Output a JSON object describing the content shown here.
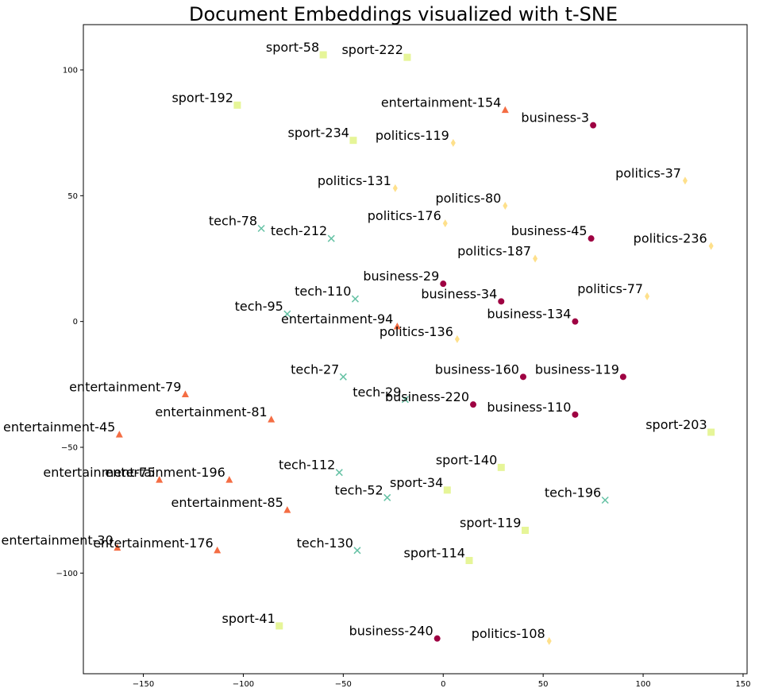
{
  "chart_data": {
    "type": "scatter",
    "title": "Document Embeddings visualized with t-SNE",
    "xlabel": "",
    "ylabel": "",
    "xlim": [
      -180,
      152
    ],
    "ylim": [
      -140,
      118
    ],
    "xticks": [
      -150,
      -100,
      -50,
      0,
      50,
      100,
      150
    ],
    "yticks": [
      -100,
      -50,
      0,
      50,
      100
    ],
    "tick_labels_x": [
      "−150",
      "−100",
      "−50",
      "0",
      "50",
      "100",
      "150"
    ],
    "tick_labels_y": [
      "−100",
      "−50",
      "0",
      "50",
      "100"
    ],
    "grid": false,
    "legend": "none",
    "categories": {
      "business": {
        "color": "#9e0142",
        "marker": "circle-icon"
      },
      "entertainment": {
        "color": "#f46d43",
        "marker": "triangle-icon"
      },
      "politics": {
        "color": "#fee08b",
        "marker": "diamond-icon"
      },
      "sport": {
        "color": "#e6f598",
        "marker": "square-icon"
      },
      "tech": {
        "color": "#66c2a5",
        "marker": "x-icon"
      }
    },
    "points": [
      {
        "label": "sport-58",
        "category": "sport",
        "x": -60,
        "y": 106
      },
      {
        "label": "sport-222",
        "category": "sport",
        "x": -18,
        "y": 105
      },
      {
        "label": "sport-192",
        "category": "sport",
        "x": -103,
        "y": 86
      },
      {
        "label": "entertainment-154",
        "category": "entertainment",
        "x": 31,
        "y": 84
      },
      {
        "label": "business-3",
        "category": "business",
        "x": 75,
        "y": 78
      },
      {
        "label": "sport-234",
        "category": "sport",
        "x": -45,
        "y": 72
      },
      {
        "label": "politics-119",
        "category": "politics",
        "x": 5,
        "y": 71
      },
      {
        "label": "politics-37",
        "category": "politics",
        "x": 121,
        "y": 56
      },
      {
        "label": "politics-131",
        "category": "politics",
        "x": -24,
        "y": 53
      },
      {
        "label": "politics-80",
        "category": "politics",
        "x": 31,
        "y": 46
      },
      {
        "label": "politics-176",
        "category": "politics",
        "x": 1,
        "y": 39
      },
      {
        "label": "tech-78",
        "category": "tech",
        "x": -91,
        "y": 37
      },
      {
        "label": "tech-212",
        "category": "tech",
        "x": -56,
        "y": 33
      },
      {
        "label": "business-45",
        "category": "business",
        "x": 74,
        "y": 33
      },
      {
        "label": "politics-236",
        "category": "politics",
        "x": 134,
        "y": 30
      },
      {
        "label": "politics-187",
        "category": "politics",
        "x": 46,
        "y": 25
      },
      {
        "label": "business-29",
        "category": "business",
        "x": 0,
        "y": 15
      },
      {
        "label": "tech-110",
        "category": "tech",
        "x": -44,
        "y": 9
      },
      {
        "label": "business-34",
        "category": "business",
        "x": 29,
        "y": 8
      },
      {
        "label": "politics-77",
        "category": "politics",
        "x": 102,
        "y": 10
      },
      {
        "label": "tech-95",
        "category": "tech",
        "x": -78,
        "y": 3
      },
      {
        "label": "entertainment-94",
        "category": "entertainment",
        "x": -23,
        "y": -2
      },
      {
        "label": "business-134",
        "category": "business",
        "x": 66,
        "y": 0
      },
      {
        "label": "politics-136",
        "category": "politics",
        "x": 7,
        "y": -7
      },
      {
        "label": "tech-27",
        "category": "tech",
        "x": -50,
        "y": -22
      },
      {
        "label": "business-160",
        "category": "business",
        "x": 40,
        "y": -22
      },
      {
        "label": "business-119",
        "category": "business",
        "x": 90,
        "y": -22
      },
      {
        "label": "entertainment-79",
        "category": "entertainment",
        "x": -129,
        "y": -29
      },
      {
        "label": "tech-29",
        "category": "tech",
        "x": -19,
        "y": -31
      },
      {
        "label": "business-220",
        "category": "business",
        "x": 15,
        "y": -33
      },
      {
        "label": "business-110",
        "category": "business",
        "x": 66,
        "y": -37
      },
      {
        "label": "entertainment-81",
        "category": "entertainment",
        "x": -86,
        "y": -39
      },
      {
        "label": "entertainment-45",
        "category": "entertainment",
        "x": -162,
        "y": -45
      },
      {
        "label": "sport-203",
        "category": "sport",
        "x": 134,
        "y": -44
      },
      {
        "label": "sport-140",
        "category": "sport",
        "x": 29,
        "y": -58
      },
      {
        "label": "tech-112",
        "category": "tech",
        "x": -52,
        "y": -60
      },
      {
        "label": "entertainment-75",
        "category": "entertainment",
        "x": -142,
        "y": -63
      },
      {
        "label": "entertainment-196",
        "category": "entertainment",
        "x": -107,
        "y": -63
      },
      {
        "label": "sport-34",
        "category": "sport",
        "x": 2,
        "y": -67
      },
      {
        "label": "tech-52",
        "category": "tech",
        "x": -28,
        "y": -70
      },
      {
        "label": "tech-196",
        "category": "tech",
        "x": 81,
        "y": -71
      },
      {
        "label": "entertainment-85",
        "category": "entertainment",
        "x": -78,
        "y": -75
      },
      {
        "label": "sport-119",
        "category": "sport",
        "x": 41,
        "y": -83
      },
      {
        "label": "entertainment-30",
        "category": "entertainment",
        "x": -163,
        "y": -90
      },
      {
        "label": "entertainment-176",
        "category": "entertainment",
        "x": -113,
        "y": -91
      },
      {
        "label": "tech-130",
        "category": "tech",
        "x": -43,
        "y": -91
      },
      {
        "label": "sport-114",
        "category": "sport",
        "x": 13,
        "y": -95
      },
      {
        "label": "sport-41",
        "category": "sport",
        "x": -82,
        "y": -121
      },
      {
        "label": "business-240",
        "category": "business",
        "x": -3,
        "y": -126
      },
      {
        "label": "politics-108",
        "category": "politics",
        "x": 53,
        "y": -127
      }
    ]
  }
}
